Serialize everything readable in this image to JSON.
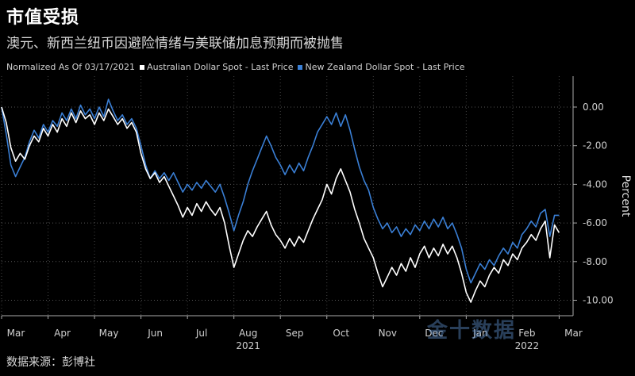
{
  "title": "市值受损",
  "subtitle": "澳元、新西兰纽币因避险情绪与美联储加息预期而被抛售",
  "legend_prefix": "Normalized As Of 03/17/2021",
  "source": "数据来源：彭博社",
  "watermark": "金十数据",
  "colors": {
    "aud": "#ffffff",
    "nzd": "#3a7fd5"
  },
  "chart_data": {
    "type": "line",
    "ylabel": "Percent",
    "ylim": [
      -10.8,
      1.6
    ],
    "yticks": [
      0,
      -2,
      -4,
      -6,
      -8,
      -10
    ],
    "ytick_labels": [
      "0.00",
      "-2.00",
      "-4.00",
      "-6.00",
      "-8.00",
      "-10.00"
    ],
    "xlim": [
      0,
      12.3
    ],
    "x_tick_labels": [
      {
        "pos": 0.0,
        "label": "Mar"
      },
      {
        "pos": 1.0,
        "label": "Apr"
      },
      {
        "pos": 2.0,
        "label": "May"
      },
      {
        "pos": 3.0,
        "label": "Jun"
      },
      {
        "pos": 4.0,
        "label": "Jul"
      },
      {
        "pos": 5.0,
        "label": "Aug"
      },
      {
        "pos": 6.0,
        "label": "Sep"
      },
      {
        "pos": 7.0,
        "label": "Oct"
      },
      {
        "pos": 8.0,
        "label": "Nov"
      },
      {
        "pos": 9.0,
        "label": "Dec"
      },
      {
        "pos": 10.0,
        "label": "Jan"
      },
      {
        "pos": 11.0,
        "label": "Feb"
      },
      {
        "pos": 12.0,
        "label": "Mar"
      }
    ],
    "year_labels": [
      {
        "pos": 5.0,
        "label": "2021"
      },
      {
        "pos": 11.0,
        "label": "2022"
      }
    ],
    "series": [
      {
        "name": "Australian Dollar Spot - Last Price",
        "color": "#ffffff",
        "points": [
          [
            0.0,
            0.0
          ],
          [
            0.1,
            -0.8
          ],
          [
            0.2,
            -2.1
          ],
          [
            0.3,
            -2.8
          ],
          [
            0.4,
            -2.4
          ],
          [
            0.5,
            -2.7
          ],
          [
            0.6,
            -2.0
          ],
          [
            0.7,
            -1.5
          ],
          [
            0.8,
            -1.8
          ],
          [
            0.9,
            -1.1
          ],
          [
            1.0,
            -1.5
          ],
          [
            1.1,
            -0.9
          ],
          [
            1.2,
            -1.3
          ],
          [
            1.3,
            -0.6
          ],
          [
            1.4,
            -1.0
          ],
          [
            1.5,
            -0.3
          ],
          [
            1.6,
            -0.8
          ],
          [
            1.7,
            -0.2
          ],
          [
            1.8,
            -0.6
          ],
          [
            1.9,
            -0.4
          ],
          [
            2.0,
            -0.9
          ],
          [
            2.1,
            -0.3
          ],
          [
            2.2,
            -0.7
          ],
          [
            2.3,
            -0.1
          ],
          [
            2.4,
            -0.5
          ],
          [
            2.5,
            -0.9
          ],
          [
            2.6,
            -0.6
          ],
          [
            2.7,
            -1.1
          ],
          [
            2.8,
            -0.8
          ],
          [
            2.9,
            -1.3
          ],
          [
            3.0,
            -2.4
          ],
          [
            3.1,
            -3.2
          ],
          [
            3.2,
            -3.7
          ],
          [
            3.3,
            -3.4
          ],
          [
            3.4,
            -3.9
          ],
          [
            3.5,
            -3.6
          ],
          [
            3.6,
            -4.1
          ],
          [
            3.7,
            -4.6
          ],
          [
            3.8,
            -5.1
          ],
          [
            3.9,
            -5.7
          ],
          [
            4.0,
            -5.2
          ],
          [
            4.1,
            -5.6
          ],
          [
            4.2,
            -5.0
          ],
          [
            4.3,
            -5.4
          ],
          [
            4.4,
            -4.9
          ],
          [
            4.5,
            -5.3
          ],
          [
            4.6,
            -5.6
          ],
          [
            4.7,
            -5.2
          ],
          [
            4.8,
            -6.0
          ],
          [
            4.9,
            -7.2
          ],
          [
            5.0,
            -8.3
          ],
          [
            5.1,
            -7.6
          ],
          [
            5.2,
            -6.9
          ],
          [
            5.3,
            -6.4
          ],
          [
            5.4,
            -6.7
          ],
          [
            5.5,
            -6.2
          ],
          [
            5.6,
            -5.8
          ],
          [
            5.7,
            -5.4
          ],
          [
            5.8,
            -6.1
          ],
          [
            5.9,
            -6.6
          ],
          [
            6.0,
            -6.9
          ],
          [
            6.1,
            -7.3
          ],
          [
            6.2,
            -6.8
          ],
          [
            6.3,
            -7.2
          ],
          [
            6.4,
            -6.7
          ],
          [
            6.5,
            -7.0
          ],
          [
            6.6,
            -6.4
          ],
          [
            6.7,
            -5.8
          ],
          [
            6.8,
            -5.3
          ],
          [
            6.9,
            -4.8
          ],
          [
            7.0,
            -4.0
          ],
          [
            7.1,
            -4.5
          ],
          [
            7.2,
            -3.7
          ],
          [
            7.3,
            -3.2
          ],
          [
            7.4,
            -3.8
          ],
          [
            7.5,
            -4.4
          ],
          [
            7.6,
            -5.3
          ],
          [
            7.7,
            -6.0
          ],
          [
            7.8,
            -6.8
          ],
          [
            7.9,
            -7.3
          ],
          [
            8.0,
            -7.8
          ],
          [
            8.1,
            -8.6
          ],
          [
            8.2,
            -9.3
          ],
          [
            8.3,
            -8.8
          ],
          [
            8.4,
            -8.3
          ],
          [
            8.5,
            -8.7
          ],
          [
            8.6,
            -8.1
          ],
          [
            8.7,
            -8.5
          ],
          [
            8.8,
            -7.8
          ],
          [
            8.9,
            -8.3
          ],
          [
            9.0,
            -7.6
          ],
          [
            9.1,
            -7.2
          ],
          [
            9.2,
            -7.8
          ],
          [
            9.3,
            -7.3
          ],
          [
            9.4,
            -7.7
          ],
          [
            9.5,
            -7.1
          ],
          [
            9.6,
            -7.6
          ],
          [
            9.7,
            -7.2
          ],
          [
            9.8,
            -7.8
          ],
          [
            9.9,
            -8.6
          ],
          [
            10.0,
            -9.6
          ],
          [
            10.1,
            -10.1
          ],
          [
            10.2,
            -9.5
          ],
          [
            10.3,
            -9.0
          ],
          [
            10.4,
            -9.3
          ],
          [
            10.5,
            -8.7
          ],
          [
            10.6,
            -8.3
          ],
          [
            10.7,
            -8.6
          ],
          [
            10.8,
            -7.9
          ],
          [
            10.9,
            -8.2
          ],
          [
            11.0,
            -7.6
          ],
          [
            11.1,
            -7.9
          ],
          [
            11.2,
            -7.3
          ],
          [
            11.3,
            -7.0
          ],
          [
            11.4,
            -6.6
          ],
          [
            11.5,
            -6.9
          ],
          [
            11.6,
            -6.3
          ],
          [
            11.7,
            -5.9
          ],
          [
            11.8,
            -7.8
          ],
          [
            11.9,
            -6.1
          ],
          [
            12.0,
            -6.5
          ]
        ]
      },
      {
        "name": "New Zealand Dollar Spot - Last Price",
        "color": "#3a7fd5",
        "points": [
          [
            0.0,
            0.0
          ],
          [
            0.1,
            -1.4
          ],
          [
            0.2,
            -3.0
          ],
          [
            0.3,
            -3.6
          ],
          [
            0.4,
            -3.1
          ],
          [
            0.5,
            -2.6
          ],
          [
            0.6,
            -1.8
          ],
          [
            0.7,
            -1.2
          ],
          [
            0.8,
            -1.6
          ],
          [
            0.9,
            -0.9
          ],
          [
            1.0,
            -1.3
          ],
          [
            1.1,
            -0.7
          ],
          [
            1.2,
            -1.0
          ],
          [
            1.3,
            -0.3
          ],
          [
            1.4,
            -0.7
          ],
          [
            1.5,
            -0.1
          ],
          [
            1.6,
            -0.6
          ],
          [
            1.7,
            0.1
          ],
          [
            1.8,
            -0.4
          ],
          [
            1.9,
            -0.1
          ],
          [
            2.0,
            -0.6
          ],
          [
            2.1,
            0.0
          ],
          [
            2.2,
            -0.5
          ],
          [
            2.3,
            0.4
          ],
          [
            2.4,
            -0.2
          ],
          [
            2.5,
            -0.7
          ],
          [
            2.6,
            -0.4
          ],
          [
            2.7,
            -0.9
          ],
          [
            2.8,
            -0.6
          ],
          [
            2.9,
            -1.1
          ],
          [
            3.0,
            -2.0
          ],
          [
            3.1,
            -3.0
          ],
          [
            3.2,
            -3.7
          ],
          [
            3.3,
            -3.3
          ],
          [
            3.4,
            -3.7
          ],
          [
            3.5,
            -3.4
          ],
          [
            3.6,
            -3.8
          ],
          [
            3.7,
            -3.4
          ],
          [
            3.8,
            -3.9
          ],
          [
            3.9,
            -4.4
          ],
          [
            4.0,
            -4.0
          ],
          [
            4.1,
            -4.3
          ],
          [
            4.2,
            -3.9
          ],
          [
            4.3,
            -4.2
          ],
          [
            4.4,
            -3.8
          ],
          [
            4.5,
            -4.1
          ],
          [
            4.6,
            -4.4
          ],
          [
            4.7,
            -4.0
          ],
          [
            4.8,
            -4.7
          ],
          [
            4.9,
            -5.5
          ],
          [
            5.0,
            -6.4
          ],
          [
            5.1,
            -5.6
          ],
          [
            5.2,
            -4.9
          ],
          [
            5.3,
            -4.0
          ],
          [
            5.4,
            -3.3
          ],
          [
            5.5,
            -2.7
          ],
          [
            5.6,
            -2.1
          ],
          [
            5.7,
            -1.5
          ],
          [
            5.8,
            -2.0
          ],
          [
            5.9,
            -2.6
          ],
          [
            6.0,
            -3.0
          ],
          [
            6.1,
            -3.5
          ],
          [
            6.2,
            -3.0
          ],
          [
            6.3,
            -3.4
          ],
          [
            6.4,
            -2.9
          ],
          [
            6.5,
            -3.3
          ],
          [
            6.6,
            -2.6
          ],
          [
            6.7,
            -2.0
          ],
          [
            6.8,
            -1.3
          ],
          [
            6.9,
            -0.9
          ],
          [
            7.0,
            -0.5
          ],
          [
            7.1,
            -0.9
          ],
          [
            7.2,
            -0.3
          ],
          [
            7.3,
            -1.0
          ],
          [
            7.4,
            -0.4
          ],
          [
            7.5,
            -1.2
          ],
          [
            7.6,
            -2.2
          ],
          [
            7.7,
            -3.1
          ],
          [
            7.8,
            -3.8
          ],
          [
            7.9,
            -4.3
          ],
          [
            8.0,
            -5.2
          ],
          [
            8.1,
            -5.8
          ],
          [
            8.2,
            -6.3
          ],
          [
            8.3,
            -6.0
          ],
          [
            8.4,
            -6.5
          ],
          [
            8.5,
            -6.2
          ],
          [
            8.6,
            -6.7
          ],
          [
            8.7,
            -6.3
          ],
          [
            8.8,
            -6.6
          ],
          [
            8.9,
            -6.1
          ],
          [
            9.0,
            -6.4
          ],
          [
            9.1,
            -5.9
          ],
          [
            9.2,
            -6.3
          ],
          [
            9.3,
            -5.8
          ],
          [
            9.4,
            -6.2
          ],
          [
            9.5,
            -5.7
          ],
          [
            9.6,
            -6.3
          ],
          [
            9.7,
            -6.0
          ],
          [
            9.8,
            -6.6
          ],
          [
            9.9,
            -7.3
          ],
          [
            10.0,
            -8.4
          ],
          [
            10.1,
            -9.1
          ],
          [
            10.2,
            -8.6
          ],
          [
            10.3,
            -8.1
          ],
          [
            10.4,
            -8.4
          ],
          [
            10.5,
            -7.9
          ],
          [
            10.6,
            -8.2
          ],
          [
            10.7,
            -7.7
          ],
          [
            10.8,
            -7.3
          ],
          [
            10.9,
            -7.6
          ],
          [
            11.0,
            -7.0
          ],
          [
            11.1,
            -7.3
          ],
          [
            11.2,
            -6.6
          ],
          [
            11.3,
            -6.3
          ],
          [
            11.4,
            -5.9
          ],
          [
            11.5,
            -6.2
          ],
          [
            11.6,
            -5.5
          ],
          [
            11.7,
            -5.3
          ],
          [
            11.8,
            -6.7
          ],
          [
            11.9,
            -5.6
          ],
          [
            12.0,
            -5.6
          ]
        ]
      }
    ]
  }
}
